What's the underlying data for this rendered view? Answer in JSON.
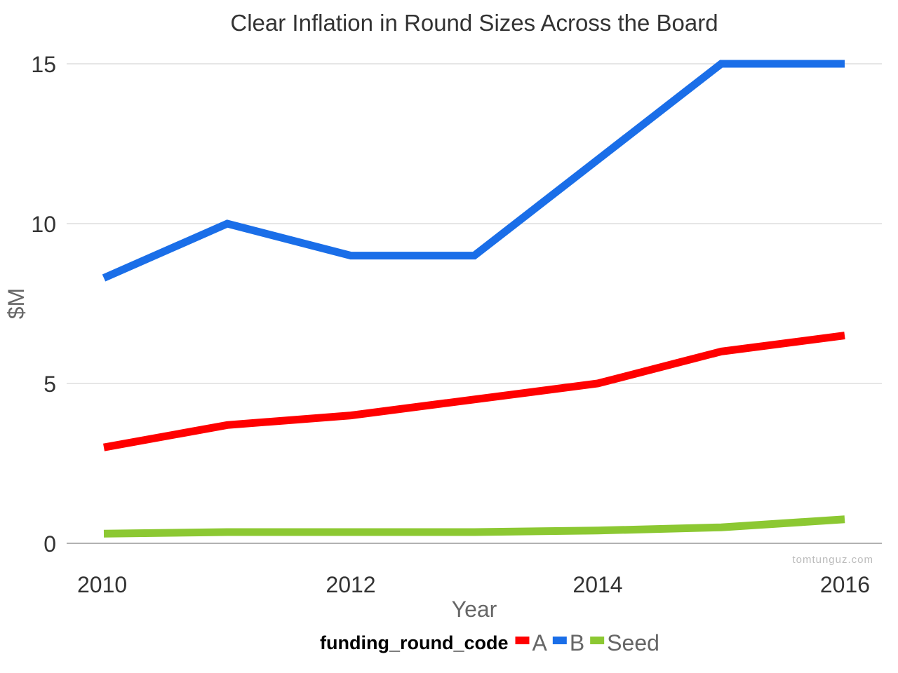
{
  "chart_data": {
    "type": "line",
    "title": "Clear Inflation in Round Sizes Across the Board",
    "xlabel": "Year",
    "ylabel": "$M",
    "x": [
      2010,
      2011,
      2012,
      2013,
      2014,
      2015,
      2016
    ],
    "x_ticks": [
      "2010",
      "2012",
      "2014",
      "2016"
    ],
    "y_ticks": [
      "0",
      "5",
      "10",
      "15"
    ],
    "xlim": [
      2010,
      2016
    ],
    "ylim": [
      0,
      15
    ],
    "grid": true,
    "legend": {
      "title": "funding_round_code",
      "placement": "bottom"
    },
    "series": [
      {
        "name": "A",
        "color": "#ff0000",
        "values": [
          3.0,
          3.7,
          4.0,
          4.5,
          5.0,
          6.0,
          6.5
        ]
      },
      {
        "name": "B",
        "color": "#1a6ee8",
        "values": [
          8.3,
          10.0,
          9.0,
          9.0,
          12.0,
          15.0,
          15.0
        ]
      },
      {
        "name": "Seed",
        "color": "#8cc832",
        "values": [
          0.3,
          0.35,
          0.35,
          0.35,
          0.4,
          0.5,
          0.75
        ]
      }
    ],
    "credit": "tomtunguz.com"
  }
}
